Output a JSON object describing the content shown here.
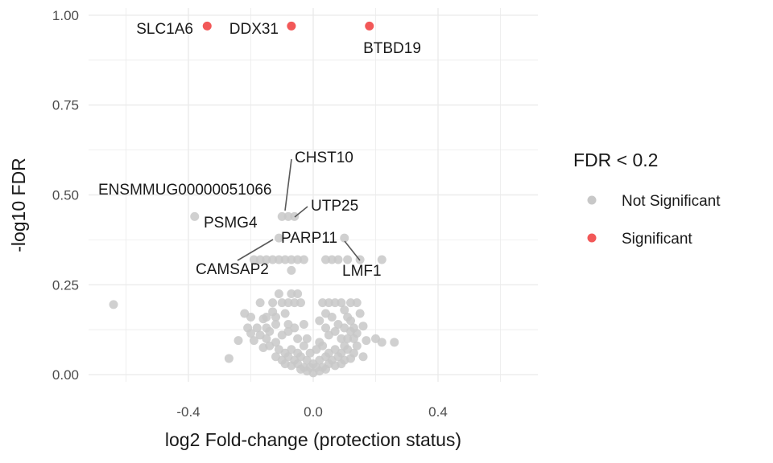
{
  "chart_data": {
    "type": "scatter",
    "title": "",
    "xlabel": "log2 Fold-change (protection status)",
    "ylabel": "-log10 FDR",
    "xlim": [
      -0.72,
      0.72
    ],
    "ylim": [
      -0.02,
      1.02
    ],
    "x_ticks": [
      -0.4,
      0.0,
      0.4
    ],
    "x_tick_labels": [
      "-0.4",
      "0.0",
      "0.4"
    ],
    "y_ticks": [
      0.0,
      0.25,
      0.5,
      0.75,
      1.0
    ],
    "y_tick_labels": [
      "0.00",
      "0.25",
      "0.50",
      "0.75",
      "1.00"
    ],
    "grid": true,
    "legend": {
      "title": "FDR < 0.2",
      "position": "right",
      "entries": [
        {
          "label": "Not Significant",
          "color": "#c8c8c8"
        },
        {
          "label": "Significant",
          "color": "#f03b3b"
        }
      ]
    },
    "series": [
      {
        "name": "Significant",
        "color": "#f03b3b",
        "points": [
          [
            -0.34,
            0.97
          ],
          [
            -0.07,
            0.97
          ],
          [
            0.18,
            0.97
          ]
        ]
      },
      {
        "name": "Not Significant",
        "color": "#c8c8c8",
        "points": [
          [
            -0.64,
            0.195
          ],
          [
            -0.38,
            0.44
          ],
          [
            -0.1,
            0.44
          ],
          [
            -0.08,
            0.44
          ],
          [
            -0.06,
            0.44
          ],
          [
            -0.11,
            0.38
          ],
          [
            0.1,
            0.38
          ],
          [
            -0.19,
            0.32
          ],
          [
            -0.17,
            0.32
          ],
          [
            -0.15,
            0.32
          ],
          [
            -0.13,
            0.32
          ],
          [
            -0.11,
            0.32
          ],
          [
            -0.09,
            0.32
          ],
          [
            -0.07,
            0.32
          ],
          [
            -0.05,
            0.32
          ],
          [
            -0.03,
            0.32
          ],
          [
            0.04,
            0.32
          ],
          [
            0.06,
            0.32
          ],
          [
            0.08,
            0.32
          ],
          [
            0.11,
            0.32
          ],
          [
            0.15,
            0.32
          ],
          [
            0.22,
            0.32
          ],
          [
            -0.07,
            0.29
          ],
          [
            -0.11,
            0.225
          ],
          [
            -0.07,
            0.225
          ],
          [
            -0.05,
            0.225
          ],
          [
            -0.17,
            0.2
          ],
          [
            -0.13,
            0.2
          ],
          [
            -0.1,
            0.2
          ],
          [
            -0.08,
            0.2
          ],
          [
            -0.06,
            0.2
          ],
          [
            -0.04,
            0.2
          ],
          [
            0.03,
            0.2
          ],
          [
            0.05,
            0.2
          ],
          [
            0.07,
            0.2
          ],
          [
            0.09,
            0.2
          ],
          [
            0.12,
            0.2
          ],
          [
            0.14,
            0.2
          ],
          [
            -0.22,
            0.17
          ],
          [
            -0.2,
            0.16
          ],
          [
            -0.16,
            0.155
          ],
          [
            -0.12,
            0.16
          ],
          [
            -0.09,
            0.17
          ],
          [
            0.04,
            0.17
          ],
          [
            0.06,
            0.16
          ],
          [
            0.11,
            0.16
          ],
          [
            0.12,
            0.15
          ],
          [
            -0.21,
            0.13
          ],
          [
            -0.18,
            0.13
          ],
          [
            -0.15,
            0.13
          ],
          [
            -0.12,
            0.14
          ],
          [
            -0.08,
            0.14
          ],
          [
            0.08,
            0.14
          ],
          [
            0.1,
            0.13
          ],
          [
            0.13,
            0.13
          ],
          [
            0.16,
            0.135
          ],
          [
            -0.2,
            0.115
          ],
          [
            -0.17,
            0.11
          ],
          [
            -0.14,
            0.12
          ],
          [
            0.12,
            0.12
          ],
          [
            0.14,
            0.115
          ],
          [
            -0.24,
            0.095
          ],
          [
            -0.19,
            0.095
          ],
          [
            -0.15,
            0.1
          ],
          [
            0.11,
            0.1
          ],
          [
            0.13,
            0.1
          ],
          [
            0.17,
            0.095
          ],
          [
            0.2,
            0.1
          ],
          [
            -0.16,
            0.075
          ],
          [
            0.1,
            0.08
          ],
          [
            0.14,
            0.08
          ],
          [
            -0.27,
            0.045
          ],
          [
            0.16,
            0.05
          ],
          [
            0.26,
            0.09
          ],
          [
            0.22,
            0.09
          ],
          [
            -0.12,
            0.09
          ],
          [
            -0.1,
            0.11
          ],
          [
            -0.08,
            0.12
          ],
          [
            -0.06,
            0.13
          ],
          [
            -0.05,
            0.1
          ],
          [
            0.05,
            0.11
          ],
          [
            0.07,
            0.12
          ],
          [
            0.09,
            0.1
          ],
          [
            0.04,
            0.13
          ],
          [
            -0.14,
            0.08
          ],
          [
            -0.11,
            0.07
          ],
          [
            -0.09,
            0.06
          ],
          [
            -0.07,
            0.07
          ],
          [
            -0.05,
            0.06
          ],
          [
            0.05,
            0.06
          ],
          [
            0.07,
            0.07
          ],
          [
            0.09,
            0.06
          ],
          [
            0.11,
            0.07
          ],
          [
            0.13,
            0.06
          ],
          [
            -0.12,
            0.05
          ],
          [
            -0.1,
            0.04
          ],
          [
            -0.08,
            0.05
          ],
          [
            -0.06,
            0.04
          ],
          [
            -0.04,
            0.05
          ],
          [
            0.04,
            0.05
          ],
          [
            0.06,
            0.04
          ],
          [
            0.08,
            0.05
          ],
          [
            0.1,
            0.04
          ],
          [
            0.12,
            0.045
          ],
          [
            -0.09,
            0.03
          ],
          [
            -0.07,
            0.025
          ],
          [
            -0.05,
            0.03
          ],
          [
            -0.03,
            0.02
          ],
          [
            0.03,
            0.02
          ],
          [
            0.05,
            0.03
          ],
          [
            0.07,
            0.025
          ],
          [
            0.09,
            0.03
          ],
          [
            -0.04,
            0.015
          ],
          [
            -0.02,
            0.01
          ],
          [
            0.0,
            0.005
          ],
          [
            0.02,
            0.01
          ],
          [
            0.04,
            0.015
          ],
          [
            -0.03,
            0.08
          ],
          [
            -0.02,
            0.1
          ],
          [
            -0.01,
            0.06
          ],
          [
            0.01,
            0.07
          ],
          [
            0.02,
            0.09
          ],
          [
            0.03,
            0.08
          ],
          [
            -0.02,
            0.04
          ],
          [
            0.02,
            0.04
          ],
          [
            0.0,
            0.03
          ],
          [
            -0.01,
            0.02
          ],
          [
            0.01,
            0.02
          ],
          [
            -0.13,
            0.175
          ],
          [
            0.1,
            0.18
          ],
          [
            -0.03,
            0.14
          ],
          [
            0.02,
            0.15
          ],
          [
            -0.15,
            0.16
          ],
          [
            0.15,
            0.17
          ]
        ]
      }
    ],
    "annotations": [
      {
        "text": "SLC1A6",
        "x": -0.34,
        "y": 0.97
      },
      {
        "text": "DDX31",
        "x": -0.07,
        "y": 0.97
      },
      {
        "text": "BTBD19",
        "x": 0.18,
        "y": 0.97
      },
      {
        "text": "CHST10",
        "x": -0.08,
        "y": 0.44
      },
      {
        "text": "ENSMMUG00000051066",
        "x": -0.1,
        "y": 0.44
      },
      {
        "text": "UTP25",
        "x": -0.06,
        "y": 0.44
      },
      {
        "text": "PSMG4",
        "x": -0.38,
        "y": 0.44
      },
      {
        "text": "PARP11",
        "x": -0.11,
        "y": 0.38
      },
      {
        "text": "CAMSAP2",
        "x": -0.19,
        "y": 0.32
      },
      {
        "text": "LMF1",
        "x": 0.1,
        "y": 0.38
      }
    ]
  }
}
